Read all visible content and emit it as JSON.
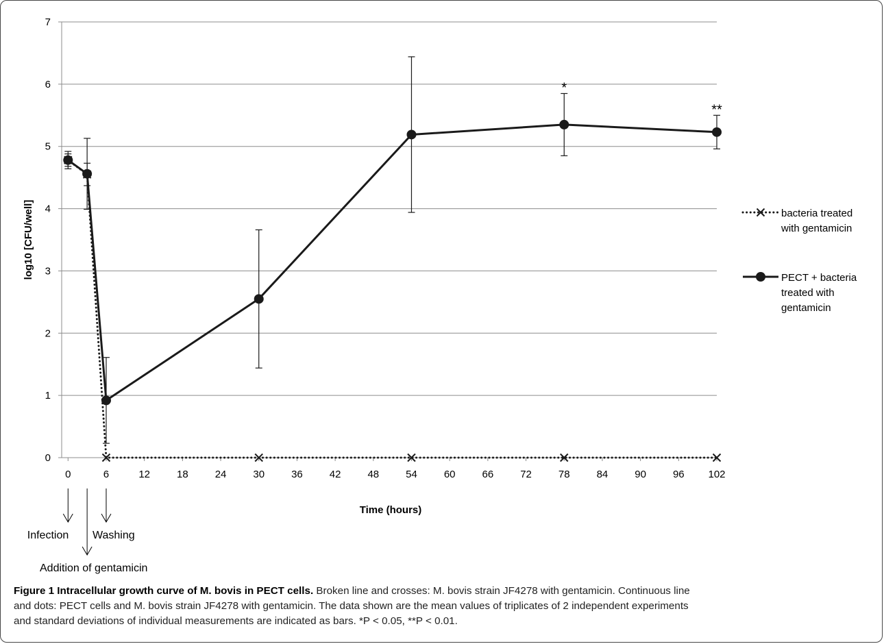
{
  "chart_data": {
    "type": "line",
    "xlabel": "Time (hours)",
    "ylabel": "log10 [CFU/well]",
    "xlim": [
      -1,
      102
    ],
    "ylim": [
      0,
      7
    ],
    "x_ticks": [
      0,
      6,
      12,
      18,
      24,
      30,
      36,
      42,
      48,
      54,
      60,
      66,
      72,
      78,
      84,
      90,
      96,
      102
    ],
    "y_ticks": [
      0,
      1,
      2,
      3,
      4,
      5,
      6,
      7
    ],
    "grid": "horizontal",
    "legend_position": "right",
    "series": [
      {
        "name": "bacteria treated with gentamicin",
        "legend_lines": [
          "bacteria treated",
          "with gentamicin"
        ],
        "style": "dotted",
        "marker": "x",
        "color": "#1a1a1a",
        "x": [
          0,
          3,
          6,
          30,
          54,
          78,
          102
        ],
        "y": [
          4.78,
          4.55,
          0,
          0,
          0,
          0,
          0
        ],
        "error": [
          0.1,
          0.18,
          0,
          0,
          0,
          0,
          0
        ]
      },
      {
        "name": "PECT + bacteria treated with gentamicin",
        "legend_lines": [
          "PECT + bacteria",
          "treated with",
          "gentamicin"
        ],
        "style": "solid",
        "marker": "circle",
        "color": "#1a1a1a",
        "x": [
          0,
          3,
          6,
          30,
          54,
          78,
          102
        ],
        "y": [
          4.78,
          4.56,
          0.92,
          2.55,
          5.19,
          5.35,
          5.23
        ],
        "error": [
          0.14,
          0.57,
          0.69,
          1.11,
          1.25,
          0.5,
          0.27
        ]
      }
    ],
    "significance": [
      {
        "x": 78,
        "label": "*"
      },
      {
        "x": 102,
        "label": "**"
      }
    ],
    "annotations": [
      {
        "label": "Infection",
        "x": 0,
        "depth": "short"
      },
      {
        "label": "Addition of gentamicin",
        "x": 3,
        "depth": "long"
      },
      {
        "label": "Washing",
        "x": 6,
        "depth": "short"
      }
    ]
  },
  "caption": {
    "title": "Figure 1 Intracellular growth curve of M. bovis in PECT cells.",
    "line1": "Broken line and crosses: M. bovis strain JF4278 with gentamicin. Continuous line",
    "line2": "and dots: PECT cells and M. bovis strain JF4278 with gentamicin. The data shown are the mean values of triplicates of 2 independent experiments",
    "line3": "and standard deviations of individual measurements are indicated as bars. *P < 0.05, **P < 0.01."
  },
  "colors": {
    "line": "#1a1a1a",
    "grid": "#8c8c8c",
    "axis": "#8c8c8c"
  }
}
